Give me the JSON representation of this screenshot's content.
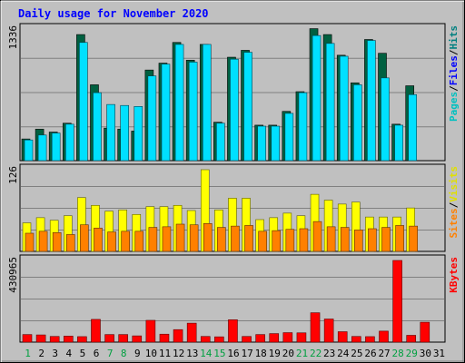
{
  "chart_data": {
    "type": "bar",
    "title": "Daily usage for November 2020",
    "days": [
      1,
      2,
      3,
      4,
      5,
      6,
      7,
      8,
      9,
      10,
      11,
      12,
      13,
      14,
      15,
      16,
      17,
      18,
      19,
      20,
      21,
      22,
      23,
      24,
      25,
      26,
      27,
      28,
      29,
      30,
      31
    ],
    "weekend_days": [
      1,
      7,
      8,
      14,
      15,
      21,
      22,
      28,
      29
    ],
    "panels": [
      {
        "id": "pages-files-hits",
        "max_label": "1336",
        "ylim": [
          0,
          1336
        ],
        "series": [
          {
            "name": "Hits",
            "color": "#00e0ff",
            "values": [
              210,
              260,
              280,
              370,
              1200,
              690,
              570,
              560,
              550,
              860,
              980,
              1180,
              1000,
              1180,
              380,
              1030,
              1100,
              350,
              350,
              480,
              690,
              1270,
              1190,
              1060,
              770,
              1220,
              840,
              360,
              670,
              0,
              0
            ]
          },
          {
            "name": "Files",
            "color": "#0000ff",
            "values": [
              120,
              170,
              120,
              150,
              170,
              170,
              110,
              160,
              160,
              200,
              170,
              220,
              200,
              200,
              200,
              190,
              200,
              150,
              150,
              170,
              160,
              230,
              150,
              170,
              170,
              230,
              170,
              150,
              140,
              0,
              0
            ]
          },
          {
            "name": "Pages",
            "color": "#00ffff",
            "values": [
              60,
              80,
              70,
              80,
              100,
              90,
              70,
              80,
              80,
              90,
              80,
              120,
              100,
              100,
              90,
              100,
              100,
              70,
              80,
              90,
              90,
              120,
              90,
              90,
              90,
              110,
              90,
              70,
              70,
              0,
              0
            ]
          }
        ],
        "back_series": {
          "name": "Hits (total)",
          "color": "#006040",
          "values": [
            220,
            320,
            290,
            380,
            1280,
            770,
            330,
            320,
            300,
            920,
            990,
            1200,
            1020,
            1180,
            390,
            1050,
            1120,
            360,
            360,
            500,
            700,
            1340,
            1280,
            1070,
            790,
            1230,
            1090,
            370,
            760,
            0,
            0
          ]
        },
        "legend": [
          "Pages",
          "/",
          "Files",
          "/",
          "Hits"
        ]
      },
      {
        "id": "sites-visits",
        "max_label": "126",
        "ylim": [
          0,
          126
        ],
        "series": [
          {
            "name": "Visits",
            "color": "#ffff00",
            "values": [
              44,
              52,
              48,
              55,
              83,
              71,
              62,
              64,
              57,
              69,
              69,
              71,
              63,
              126,
              64,
              82,
              82,
              49,
              52,
              59,
              55,
              88,
              79,
              73,
              76,
              53,
              53,
              53,
              67,
              0,
              0
            ]
          },
          {
            "name": "Sites",
            "color": "#ff8000",
            "values": [
              28,
              31,
              29,
              26,
              41,
              36,
              30,
              31,
              31,
              37,
              38,
              42,
              41,
              43,
              37,
              39,
              40,
              31,
              32,
              34,
              35,
              46,
              38,
              37,
              33,
              35,
              37,
              40,
              39,
              0,
              0
            ]
          }
        ],
        "legend": [
          "Sites",
          "/",
          "Visits"
        ]
      },
      {
        "id": "kbytes",
        "max_label": "430965",
        "ylim": [
          0,
          430965
        ],
        "series": [
          {
            "name": "KBytes",
            "color": "#ff0000",
            "values": [
              40000,
              38000,
              30000,
              32000,
              29000,
              120000,
              40000,
              40000,
              33000,
              115000,
              42000,
              66000,
              100000,
              30000,
              28000,
              118000,
              30000,
              40000,
              45000,
              50000,
              49000,
              155000,
              122000,
              55000,
              30000,
              29000,
              58000,
              430965,
              36000,
              105000,
              0
            ]
          }
        ],
        "legend": [
          "KBytes"
        ]
      }
    ]
  }
}
